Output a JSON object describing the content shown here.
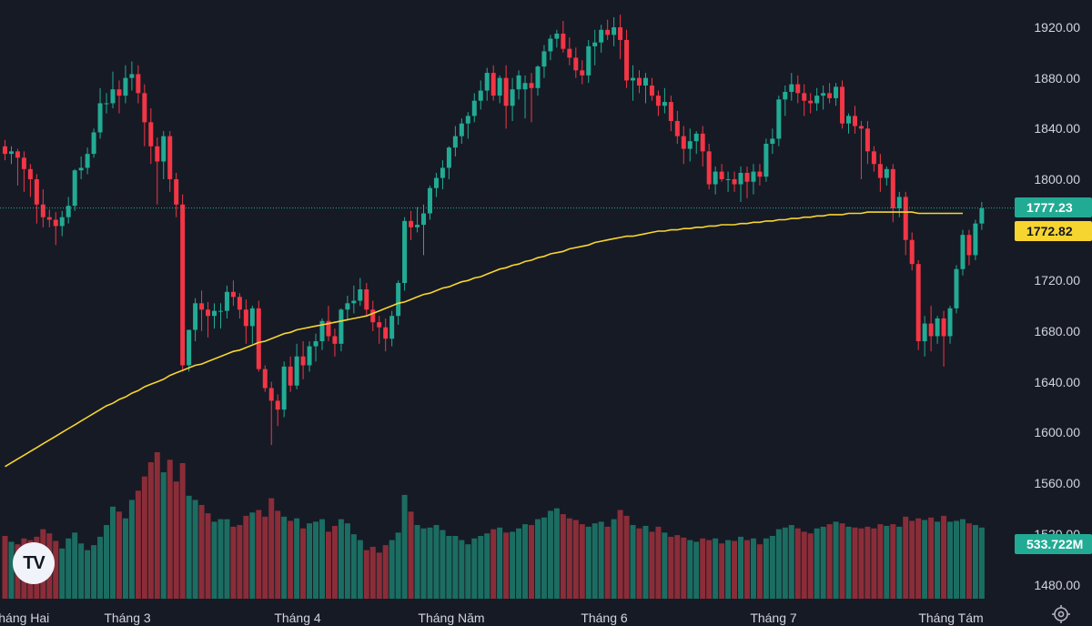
{
  "chart_data": {
    "type": "candlestick",
    "y_ticks": [
      "1920.00",
      "1880.00",
      "1840.00",
      "1800.00",
      "1720.00",
      "1680.00",
      "1640.00",
      "1600.00",
      "1560.00",
      "1520.00",
      "1480.00"
    ],
    "x_ticks": [
      "Tháng Hai",
      "Tháng 3",
      "Tháng 4",
      "Tháng Năm",
      "Tháng 6",
      "Tháng 7",
      "Tháng Tám"
    ],
    "ylim": [
      1475,
      1935
    ],
    "last_price": "1777.23",
    "ma_value": "1772.82",
    "volume_label": "533.722M",
    "colors": {
      "background": "#161a25",
      "up": "#22ab94",
      "down": "#f23645",
      "ma": "#f7d531",
      "up_volume": "#1b6d62",
      "down_volume": "#8a2d38"
    },
    "candles": [
      [
        1826,
        1831,
        1815,
        1820,
        75
      ],
      [
        1820,
        1826,
        1812,
        1822,
        68
      ],
      [
        1822,
        1824,
        1795,
        1817,
        65
      ],
      [
        1817,
        1822,
        1790,
        1808,
        72
      ],
      [
        1808,
        1812,
        1786,
        1800,
        70
      ],
      [
        1800,
        1804,
        1765,
        1780,
        74
      ],
      [
        1780,
        1792,
        1762,
        1770,
        83
      ],
      [
        1770,
        1776,
        1762,
        1768,
        78
      ],
      [
        1768,
        1774,
        1748,
        1763,
        69
      ],
      [
        1763,
        1775,
        1755,
        1770,
        60
      ],
      [
        1770,
        1786,
        1765,
        1779,
        72
      ],
      [
        1779,
        1808,
        1775,
        1807,
        79
      ],
      [
        1807,
        1818,
        1800,
        1809,
        66
      ],
      [
        1809,
        1825,
        1804,
        1820,
        58
      ],
      [
        1820,
        1840,
        1817,
        1837,
        64
      ],
      [
        1837,
        1872,
        1832,
        1860,
        74
      ],
      [
        1860,
        1868,
        1852,
        1860,
        88
      ],
      [
        1860,
        1885,
        1856,
        1871,
        110
      ],
      [
        1871,
        1878,
        1852,
        1866,
        104
      ],
      [
        1866,
        1890,
        1860,
        1880,
        96
      ],
      [
        1880,
        1893,
        1870,
        1883,
        118
      ],
      [
        1883,
        1890,
        1860,
        1868,
        129
      ],
      [
        1868,
        1875,
        1826,
        1845,
        146
      ],
      [
        1845,
        1856,
        1812,
        1826,
        163
      ],
      [
        1826,
        1833,
        1780,
        1814,
        175
      ],
      [
        1814,
        1838,
        1800,
        1834,
        151
      ],
      [
        1834,
        1838,
        1790,
        1800,
        166
      ],
      [
        1800,
        1805,
        1770,
        1780,
        140
      ],
      [
        1780,
        1788,
        1648,
        1653,
        162
      ],
      [
        1653,
        1681,
        1648,
        1681,
        123
      ],
      [
        1681,
        1706,
        1672,
        1702,
        118
      ],
      [
        1702,
        1712,
        1680,
        1697,
        112
      ],
      [
        1697,
        1703,
        1675,
        1692,
        102
      ],
      [
        1692,
        1702,
        1682,
        1696,
        92
      ],
      [
        1696,
        1702,
        1682,
        1696,
        95
      ],
      [
        1696,
        1716,
        1690,
        1711,
        95
      ],
      [
        1711,
        1720,
        1700,
        1707,
        86
      ],
      [
        1707,
        1710,
        1690,
        1697,
        88
      ],
      [
        1697,
        1705,
        1670,
        1684,
        99
      ],
      [
        1684,
        1700,
        1670,
        1698,
        103
      ],
      [
        1698,
        1704,
        1648,
        1650,
        106
      ],
      [
        1650,
        1653,
        1632,
        1635,
        98
      ],
      [
        1635,
        1640,
        1590,
        1625,
        120
      ],
      [
        1625,
        1630,
        1605,
        1618,
        105
      ],
      [
        1618,
        1656,
        1612,
        1652,
        98
      ],
      [
        1652,
        1660,
        1632,
        1637,
        93
      ],
      [
        1637,
        1670,
        1634,
        1660,
        96
      ],
      [
        1660,
        1672,
        1642,
        1653,
        84
      ],
      [
        1653,
        1672,
        1648,
        1668,
        90
      ],
      [
        1668,
        1678,
        1656,
        1672,
        92
      ],
      [
        1672,
        1690,
        1665,
        1688,
        95
      ],
      [
        1688,
        1700,
        1672,
        1676,
        80
      ],
      [
        1676,
        1682,
        1660,
        1670,
        87
      ],
      [
        1670,
        1698,
        1664,
        1697,
        95
      ],
      [
        1697,
        1708,
        1688,
        1702,
        90
      ],
      [
        1702,
        1716,
        1694,
        1704,
        77
      ],
      [
        1704,
        1722,
        1700,
        1713,
        70
      ],
      [
        1713,
        1718,
        1692,
        1697,
        58
      ],
      [
        1697,
        1704,
        1680,
        1687,
        62
      ],
      [
        1687,
        1692,
        1670,
        1683,
        55
      ],
      [
        1683,
        1690,
        1664,
        1674,
        64
      ],
      [
        1674,
        1696,
        1668,
        1692,
        70
      ],
      [
        1692,
        1720,
        1685,
        1718,
        79
      ],
      [
        1718,
        1770,
        1712,
        1767,
        124
      ],
      [
        1767,
        1775,
        1752,
        1762,
        104
      ],
      [
        1762,
        1778,
        1758,
        1764,
        88
      ],
      [
        1764,
        1780,
        1740,
        1773,
        84
      ],
      [
        1773,
        1795,
        1768,
        1793,
        85
      ],
      [
        1793,
        1805,
        1786,
        1801,
        88
      ],
      [
        1801,
        1815,
        1792,
        1809,
        82
      ],
      [
        1809,
        1826,
        1800,
        1825,
        75
      ],
      [
        1825,
        1842,
        1818,
        1834,
        75
      ],
      [
        1834,
        1848,
        1828,
        1844,
        70
      ],
      [
        1844,
        1853,
        1832,
        1850,
        65
      ],
      [
        1850,
        1868,
        1845,
        1862,
        72
      ],
      [
        1862,
        1878,
        1855,
        1870,
        75
      ],
      [
        1870,
        1888,
        1862,
        1884,
        78
      ],
      [
        1884,
        1890,
        1862,
        1866,
        83
      ],
      [
        1866,
        1882,
        1860,
        1880,
        85
      ],
      [
        1880,
        1890,
        1840,
        1858,
        79
      ],
      [
        1858,
        1880,
        1846,
        1871,
        80
      ],
      [
        1871,
        1886,
        1863,
        1882,
        84
      ],
      [
        1871,
        1882,
        1848,
        1876,
        89
      ],
      [
        1876,
        1884,
        1845,
        1872,
        88
      ],
      [
        1872,
        1890,
        1866,
        1889,
        95
      ],
      [
        1889,
        1906,
        1880,
        1901,
        97
      ],
      [
        1901,
        1914,
        1894,
        1911,
        105
      ],
      [
        1911,
        1918,
        1904,
        1915,
        108
      ],
      [
        1915,
        1925,
        1900,
        1903,
        101
      ],
      [
        1903,
        1912,
        1890,
        1896,
        96
      ],
      [
        1896,
        1904,
        1880,
        1886,
        94
      ],
      [
        1886,
        1894,
        1875,
        1882,
        89
      ],
      [
        1882,
        1910,
        1876,
        1905,
        86
      ],
      [
        1905,
        1918,
        1890,
        1908,
        90
      ],
      [
        1908,
        1922,
        1900,
        1918,
        92
      ],
      [
        1918,
        1926,
        1910,
        1914,
        86
      ],
      [
        1914,
        1928,
        1905,
        1920,
        95
      ],
      [
        1920,
        1930,
        1895,
        1910,
        106
      ],
      [
        1910,
        1918,
        1872,
        1878,
        99
      ],
      [
        1878,
        1890,
        1862,
        1880,
        88
      ],
      [
        1880,
        1886,
        1868,
        1874,
        84
      ],
      [
        1874,
        1884,
        1860,
        1880,
        87
      ],
      [
        1874,
        1880,
        1862,
        1866,
        80
      ],
      [
        1866,
        1870,
        1850,
        1858,
        86
      ],
      [
        1858,
        1872,
        1852,
        1861,
        79
      ],
      [
        1861,
        1866,
        1838,
        1846,
        74
      ],
      [
        1846,
        1854,
        1828,
        1834,
        76
      ],
      [
        1834,
        1842,
        1812,
        1824,
        73
      ],
      [
        1824,
        1840,
        1814,
        1830,
        70
      ],
      [
        1830,
        1838,
        1820,
        1836,
        68
      ],
      [
        1836,
        1842,
        1810,
        1822,
        72
      ],
      [
        1822,
        1828,
        1792,
        1796,
        70
      ],
      [
        1796,
        1810,
        1788,
        1806,
        72
      ],
      [
        1806,
        1812,
        1798,
        1800,
        66
      ],
      [
        1800,
        1806,
        1790,
        1800,
        70
      ],
      [
        1800,
        1806,
        1790,
        1796,
        69
      ],
      [
        1796,
        1810,
        1782,
        1805,
        74
      ],
      [
        1805,
        1810,
        1785,
        1798,
        70
      ],
      [
        1798,
        1812,
        1788,
        1806,
        72
      ],
      [
        1806,
        1812,
        1795,
        1802,
        65
      ],
      [
        1802,
        1832,
        1798,
        1828,
        72
      ],
      [
        1828,
        1840,
        1820,
        1832,
        75
      ],
      [
        1832,
        1866,
        1826,
        1863,
        83
      ],
      [
        1863,
        1874,
        1850,
        1869,
        85
      ],
      [
        1869,
        1884,
        1862,
        1875,
        88
      ],
      [
        1875,
        1882,
        1860,
        1868,
        84
      ],
      [
        1868,
        1875,
        1850,
        1862,
        80
      ],
      [
        1862,
        1868,
        1852,
        1860,
        78
      ],
      [
        1860,
        1872,
        1854,
        1866,
        84
      ],
      [
        1866,
        1874,
        1855,
        1868,
        86
      ],
      [
        1868,
        1876,
        1860,
        1864,
        89
      ],
      [
        1864,
        1876,
        1858,
        1873,
        92
      ],
      [
        1873,
        1878,
        1840,
        1844,
        90
      ],
      [
        1844,
        1852,
        1836,
        1850,
        86
      ],
      [
        1850,
        1858,
        1836,
        1842,
        85
      ],
      [
        1842,
        1846,
        1800,
        1840,
        84
      ],
      [
        1840,
        1846,
        1812,
        1822,
        86
      ],
      [
        1822,
        1826,
        1806,
        1812,
        84
      ],
      [
        1812,
        1820,
        1790,
        1801,
        89
      ],
      [
        1801,
        1810,
        1795,
        1808,
        87
      ],
      [
        1808,
        1812,
        1766,
        1777,
        89
      ],
      [
        1777,
        1790,
        1770,
        1786,
        86
      ],
      [
        1786,
        1790,
        1740,
        1752,
        98
      ],
      [
        1752,
        1758,
        1728,
        1733,
        93
      ],
      [
        1733,
        1736,
        1665,
        1672,
        96
      ],
      [
        1672,
        1692,
        1660,
        1686,
        94
      ],
      [
        1686,
        1700,
        1664,
        1676,
        97
      ],
      [
        1676,
        1692,
        1670,
        1690,
        92
      ],
      [
        1690,
        1696,
        1652,
        1676,
        99
      ],
      [
        1676,
        1700,
        1670,
        1698,
        92
      ],
      [
        1698,
        1732,
        1694,
        1729,
        93
      ],
      [
        1729,
        1760,
        1724,
        1756,
        95
      ],
      [
        1756,
        1760,
        1732,
        1740,
        90
      ],
      [
        1740,
        1768,
        1736,
        1765,
        88
      ],
      [
        1765,
        1782,
        1760,
        1777,
        85
      ]
    ],
    "ma": [
      1573,
      1576,
      1579,
      1582,
      1585,
      1588,
      1591,
      1594,
      1597,
      1600,
      1603,
      1606,
      1609,
      1612,
      1615,
      1618,
      1621,
      1623,
      1626,
      1628,
      1631,
      1633,
      1636,
      1638,
      1640,
      1642,
      1645,
      1647,
      1649,
      1651,
      1653,
      1654,
      1656,
      1658,
      1660,
      1662,
      1664,
      1665,
      1667,
      1669,
      1671,
      1672,
      1674,
      1676,
      1678,
      1679,
      1681,
      1682,
      1683,
      1684,
      1685,
      1686,
      1687,
      1688,
      1689,
      1690,
      1691,
      1692,
      1694,
      1696,
      1698,
      1700,
      1702,
      1703,
      1705,
      1707,
      1709,
      1710,
      1712,
      1714,
      1715,
      1717,
      1719,
      1720,
      1722,
      1723,
      1725,
      1727,
      1729,
      1730,
      1732,
      1733,
      1735,
      1736,
      1738,
      1739,
      1741,
      1742,
      1743,
      1745,
      1746,
      1747,
      1748,
      1750,
      1751,
      1752,
      1753,
      1754,
      1755,
      1755,
      1756,
      1757,
      1758,
      1759,
      1759,
      1760,
      1760,
      1761,
      1761,
      1762,
      1762,
      1763,
      1763,
      1764,
      1764,
      1764,
      1765,
      1765,
      1766,
      1766,
      1767,
      1767,
      1768,
      1768,
      1769,
      1769,
      1770,
      1770,
      1771,
      1771,
      1772,
      1772,
      1772,
      1773,
      1773,
      1773,
      1774,
      1774,
      1774,
      1774,
      1774,
      1774,
      1774,
      1774,
      1773,
      1773,
      1773,
      1773,
      1773,
      1773,
      1773,
      1773
    ]
  }
}
